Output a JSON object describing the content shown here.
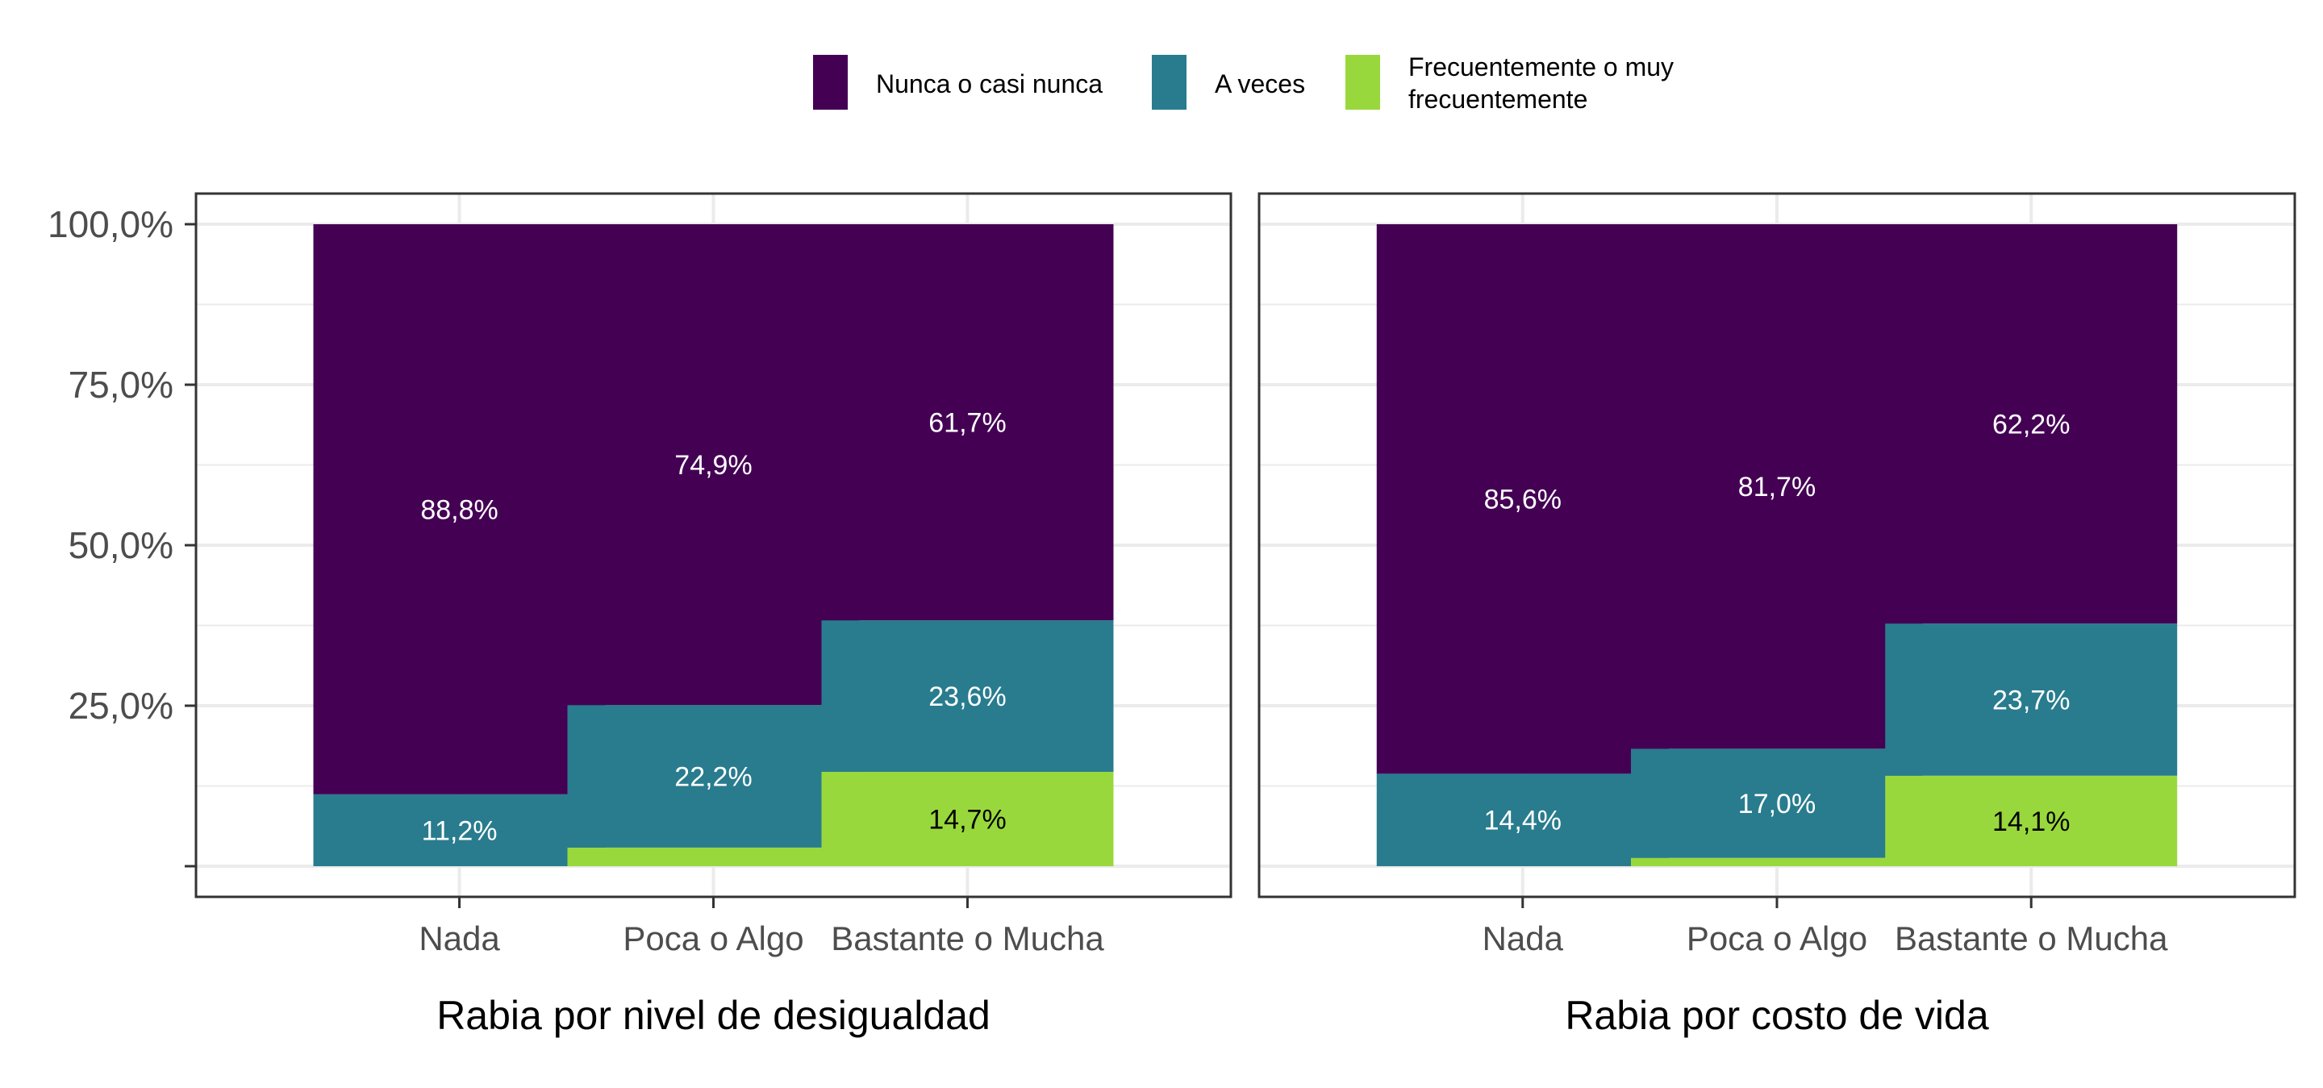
{
  "chart_data": {
    "type": "bar",
    "stacked": true,
    "categories": [
      "Nada",
      "Poca o Algo",
      "Bastante o Mucha"
    ],
    "legend": {
      "position": "top",
      "entries": [
        {
          "label": "Nunca o casi nunca",
          "color": "#440154"
        },
        {
          "label": "A veces",
          "color": "#287c8e"
        },
        {
          "label_lines": [
            "Frecuentemente o muy",
            "frecuentemente"
          ],
          "color": "#99d83c"
        }
      ]
    },
    "y_axis": {
      "ylim": [
        0,
        100
      ],
      "ticks": [
        {
          "value": 0,
          "label": ""
        },
        {
          "value": 25,
          "label": "25,0%"
        },
        {
          "value": 50,
          "label": "50,0%"
        },
        {
          "value": 75,
          "label": "75,0%"
        },
        {
          "value": 100,
          "label": "100,0%"
        }
      ]
    },
    "grid": true,
    "panels": [
      {
        "xlabel": "Rabia por nivel de desigualdad",
        "series": [
          {
            "name": "Frecuentemente o muy frecuentemente",
            "color": "#99d83c",
            "values": [
              0,
              2.9,
              14.7
            ],
            "labels": [
              "",
              "",
              "14,7%"
            ],
            "label_color": "#000000"
          },
          {
            "name": "A veces",
            "color": "#287c8e",
            "values": [
              11.2,
              22.2,
              23.6
            ],
            "labels": [
              "11,2%",
              "22,2%",
              "23,6%"
            ],
            "label_color": "#ffffff"
          },
          {
            "name": "Nunca o casi nunca",
            "color": "#440154",
            "values": [
              88.8,
              74.9,
              61.7
            ],
            "labels": [
              "88,8%",
              "74,9%",
              "61,7%"
            ],
            "label_color": "#ffffff"
          }
        ]
      },
      {
        "xlabel": "Rabia por costo de vida",
        "series": [
          {
            "name": "Frecuentemente o muy frecuentemente",
            "color": "#99d83c",
            "values": [
              0,
              1.3,
              14.1
            ],
            "labels": [
              "",
              "",
              "14,1%"
            ],
            "label_color": "#000000"
          },
          {
            "name": "A veces",
            "color": "#287c8e",
            "values": [
              14.4,
              17.0,
              23.7
            ],
            "labels": [
              "14,4%",
              "17,0%",
              "23,7%"
            ],
            "label_color": "#ffffff"
          },
          {
            "name": "Nunca o casi nunca",
            "color": "#440154",
            "values": [
              85.6,
              81.7,
              62.2
            ],
            "labels": [
              "85,6%",
              "81,7%",
              "62,2%"
            ],
            "label_color": "#ffffff"
          }
        ]
      }
    ]
  }
}
